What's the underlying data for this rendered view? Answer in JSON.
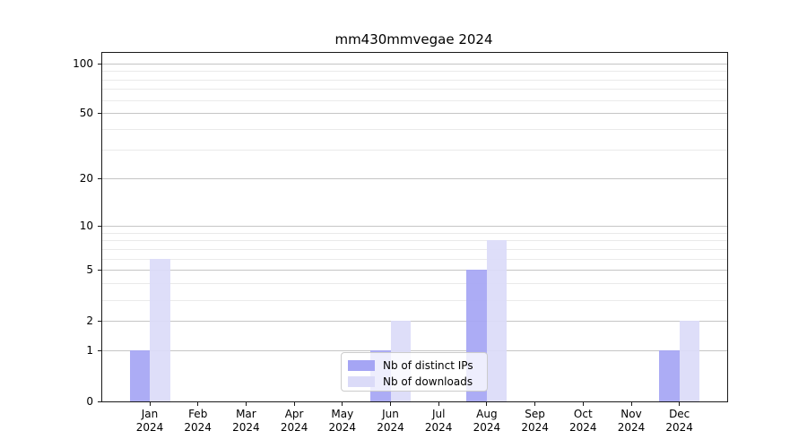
{
  "title": "mm430mmvegae 2024",
  "chart_data": {
    "type": "bar",
    "title": "mm430mmvegae 2024",
    "yscale": "log1p",
    "ylim": [
      0,
      100
    ],
    "grid": true,
    "y_major_ticks": [
      0,
      1,
      2,
      5,
      10,
      20,
      50,
      100
    ],
    "y_minor_gridlines": [
      3,
      4,
      6,
      7,
      8,
      9,
      30,
      40,
      60,
      70,
      80,
      90
    ],
    "categories": [
      "Jan",
      "Feb",
      "Mar",
      "Apr",
      "May",
      "Jun",
      "Jul",
      "Aug",
      "Sep",
      "Oct",
      "Nov",
      "Dec"
    ],
    "year_label": "2024",
    "series": [
      {
        "name": "Nb of distinct IPs",
        "color": "#a5a5f4",
        "values": [
          1,
          0,
          0,
          0,
          0,
          1,
          0,
          5,
          0,
          0,
          0,
          1
        ]
      },
      {
        "name": "Nb of downloads",
        "color": "#dbdbf8",
        "values": [
          6,
          0,
          0,
          0,
          0,
          2,
          0,
          8,
          0,
          0,
          0,
          2
        ]
      }
    ],
    "legend": {
      "position": "lower center",
      "labels": [
        "Nb of distinct IPs",
        "Nb of downloads"
      ]
    }
  }
}
